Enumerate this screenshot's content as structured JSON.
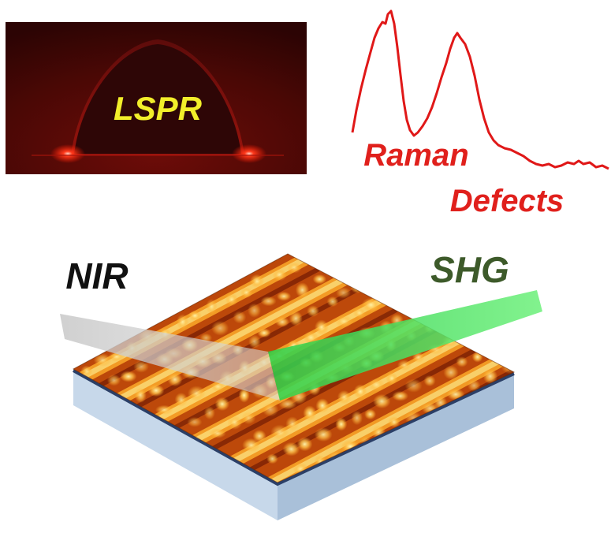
{
  "labels": {
    "lspr": "LSPR",
    "raman": "Raman",
    "defects": "Defects",
    "nir": "NIR",
    "shg": "SHG"
  },
  "colors": {
    "lspr_text": "#f2ee2a",
    "raman_text": "#e0201c",
    "nir_text": "#111111",
    "shg_text": "#3d5a2a",
    "spectrum_line": "#e01818",
    "nir_beam": "#bdbdbd",
    "shg_beam": "#3ee05a",
    "substrate_side": "#b8cde2",
    "substrate_edge": "#2b3f67",
    "lspr_background": "#3a0606"
  }
}
